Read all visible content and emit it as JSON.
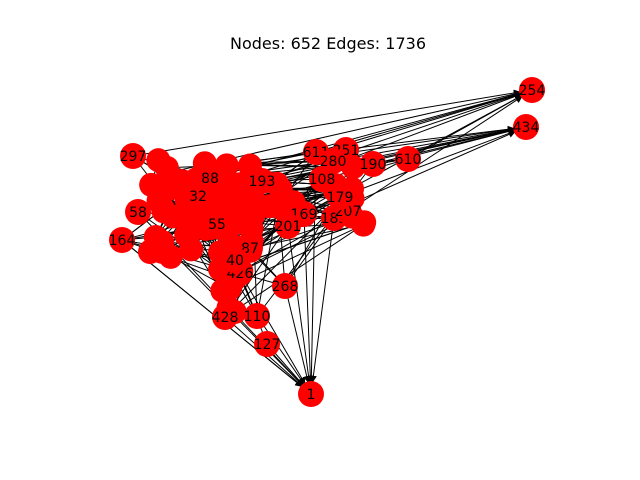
{
  "title": "Nodes: 652 Edges: 1736",
  "graph": {
    "node_color": "#ff0000",
    "edge_color": "#000000",
    "labeled_nodes": [
      "254",
      "434",
      "1",
      "127",
      "110",
      "428",
      "268",
      "169",
      "185",
      "207",
      "179",
      "193",
      "190",
      "610",
      "611",
      "251",
      "280",
      "297",
      "58",
      "164",
      "201",
      "108",
      "426",
      "87",
      "40",
      "55",
      "32",
      "88"
    ]
  }
}
